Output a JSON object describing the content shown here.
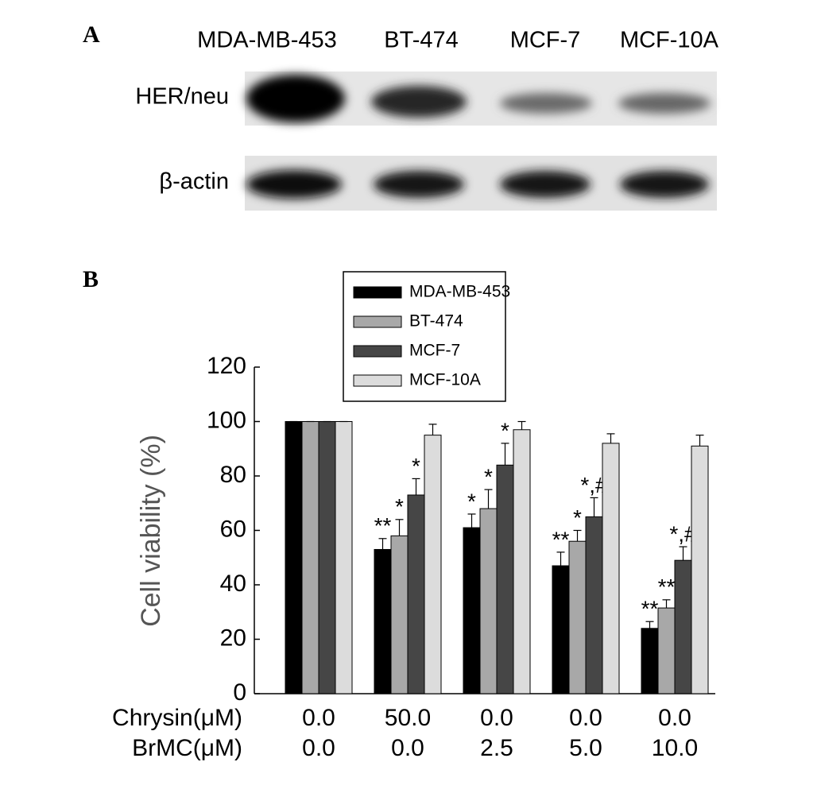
{
  "panel_a": {
    "label": "A",
    "lanes": [
      "MDA-MB-453",
      "BT-474",
      "MCF-7",
      "MCF-10A"
    ],
    "rows": [
      "HER/neu",
      "β-actin"
    ]
  },
  "chart_data": {
    "type": "bar",
    "panel_label": "B",
    "y_label": "Cell viability (%)",
    "x_label_rows": [
      {
        "label": "Chrysin(μM)",
        "values": [
          "0.0",
          "50.0",
          "0.0",
          "0.0",
          "0.0"
        ]
      },
      {
        "label": "BrMC(μM)",
        "values": [
          "0.0",
          "0.0",
          "2.5",
          "5.0",
          "10.0"
        ]
      }
    ],
    "ylim": [
      0,
      120
    ],
    "yticks": [
      0,
      20,
      40,
      60,
      80,
      100,
      120
    ],
    "series": [
      {
        "name": "MDA-MB-453",
        "color": "#000000",
        "values": [
          100,
          53,
          61,
          47,
          24
        ],
        "errors": [
          0,
          4,
          5,
          5,
          2.5
        ],
        "annotations": [
          null,
          "**",
          "*",
          "**",
          "**"
        ]
      },
      {
        "name": "BT-474",
        "color": "#a8a8a8",
        "values": [
          100,
          58,
          68,
          56,
          31.5
        ],
        "errors": [
          0,
          6,
          7,
          4,
          3
        ],
        "annotations": [
          null,
          "*",
          "*",
          "*",
          "**"
        ]
      },
      {
        "name": "MCF-7",
        "color": "#464646",
        "values": [
          100,
          73,
          84,
          65,
          49
        ],
        "errors": [
          0,
          6,
          8,
          7,
          5
        ],
        "annotations": [
          null,
          "*",
          "*",
          "*,#",
          "*,#"
        ]
      },
      {
        "name": "MCF-10A",
        "color": "#dcdcdc",
        "values": [
          100,
          95,
          97,
          92,
          91
        ],
        "errors": [
          0,
          4,
          3,
          3.5,
          4
        ],
        "annotations": [
          null,
          null,
          null,
          null,
          null
        ]
      }
    ]
  }
}
